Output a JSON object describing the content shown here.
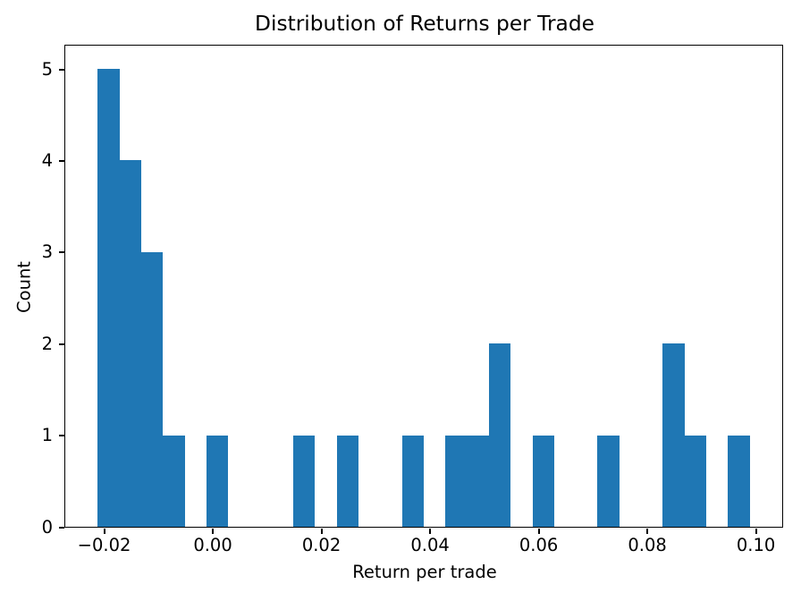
{
  "chart_data": {
    "type": "bar",
    "subtype": "histogram",
    "title": "Distribution of Returns per Trade",
    "xlabel": "Return per trade",
    "ylabel": "Count",
    "bar_color": "#1f77b4",
    "bin_start": -0.021,
    "bin_width": 0.004,
    "counts": [
      5,
      4,
      3,
      1,
      0,
      1,
      0,
      0,
      0,
      1,
      0,
      1,
      0,
      0,
      1,
      0,
      1,
      1,
      2,
      0,
      1,
      0,
      0,
      1,
      0,
      0,
      2,
      1,
      0,
      1
    ],
    "xlim": [
      -0.027,
      0.105
    ],
    "ylim": [
      0,
      5.25
    ],
    "x_ticks": [
      -0.02,
      0.0,
      0.02,
      0.04,
      0.06,
      0.08,
      0.1
    ],
    "x_tick_labels": [
      "−0.02",
      "0.00",
      "0.02",
      "0.04",
      "0.06",
      "0.08",
      "0.10"
    ],
    "y_ticks": [
      0,
      1,
      2,
      3,
      4,
      5
    ],
    "y_tick_labels": [
      "0",
      "1",
      "2",
      "3",
      "4",
      "5"
    ],
    "grid": false,
    "legend": null
  }
}
